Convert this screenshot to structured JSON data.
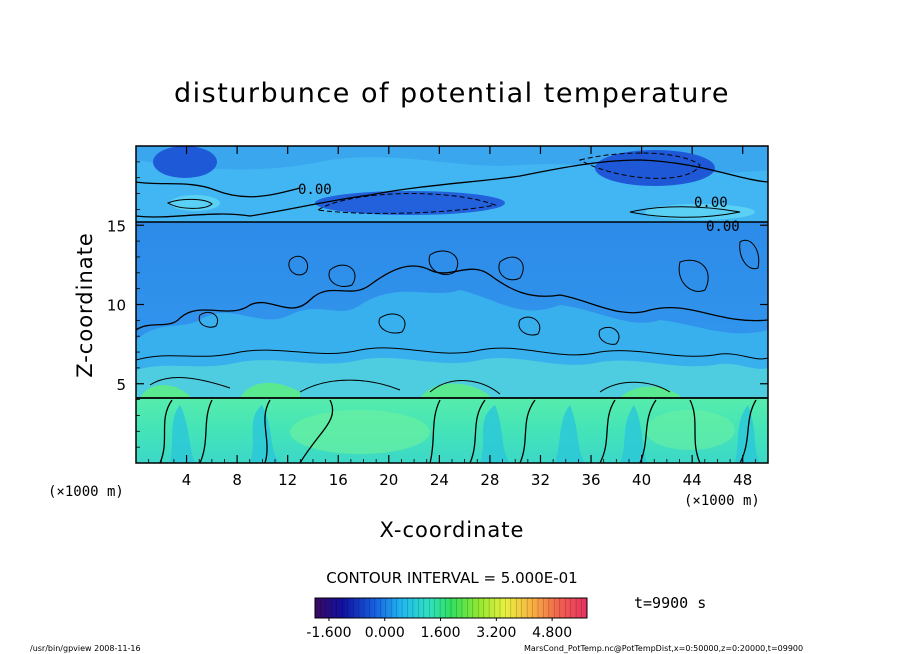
{
  "chart_data": {
    "type": "heatmap",
    "title": "disturbunce of potential temperature",
    "xlabel": "X-coordinate",
    "ylabel": "Z-coordinate",
    "x_unit_left": "(×1000 m)",
    "x_unit_right": "(×1000 m)",
    "xlim": [
      0,
      50
    ],
    "ylim": [
      0,
      20
    ],
    "x_ticks": [
      "4",
      "8",
      "12",
      "16",
      "20",
      "24",
      "28",
      "32",
      "36",
      "40",
      "44",
      "48"
    ],
    "x_tick_values": [
      4,
      8,
      12,
      16,
      20,
      24,
      28,
      32,
      36,
      40,
      44,
      48
    ],
    "y_ticks": [
      "5",
      "10",
      "15"
    ],
    "y_tick_values": [
      5,
      10,
      15
    ],
    "contour_labels": [
      {
        "text": "0.00",
        "x": 13.2,
        "z": 17.3
      },
      {
        "text": "0.00",
        "x": 43.8,
        "z": 16.6
      },
      {
        "text": "0.00",
        "x": 44.5,
        "z": 15.2
      }
    ],
    "contour_interval_text": "CONTOUR INTERVAL = 5.000E-01",
    "colorbar": {
      "min": -2.0,
      "max": 5.8,
      "tick_labels": [
        "-1.600",
        "0.000",
        "1.600",
        "3.200",
        "4.800"
      ],
      "tick_values": [
        -1.6,
        0.0,
        1.6,
        3.2,
        4.8
      ]
    },
    "time_label": "t=9900 s",
    "footer_left": "/usr/bin/gpview   2008-11-16",
    "footer_right": "MarsCond_PotTemp.nc@PotTempDist,x=0:50000,z=0:20000,t=09900",
    "colors": {
      "upper_layer": "#2f8fe8",
      "deep_blue": "#1e5ad8",
      "light_cyan": "#3ab8f0",
      "lower_layer": "#48e8b0",
      "aqua": "#30c8e0"
    }
  }
}
